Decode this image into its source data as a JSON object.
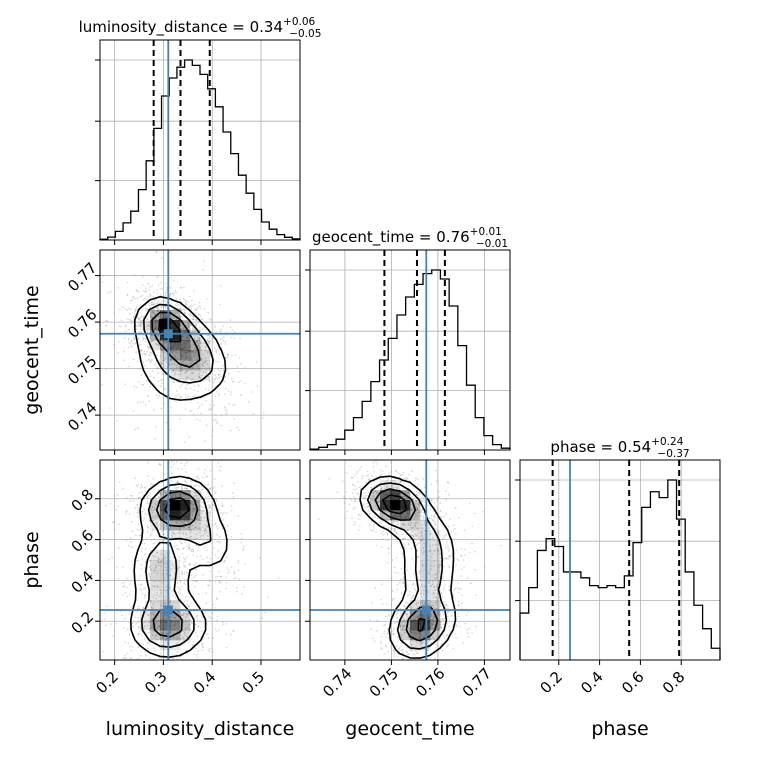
{
  "chart_data": {
    "type": "corner",
    "parameters": [
      {
        "name": "luminosity_distance",
        "label": "luminosity_distance",
        "title_prefix": "luminosity_distance = ",
        "median": "0.34",
        "plus": "+0.06",
        "minus": "−0.05",
        "range": [
          0.17,
          0.58
        ],
        "ticks": [
          0.2,
          0.3,
          0.4,
          0.5
        ],
        "tick_labels": [
          "0.2",
          "0.3",
          "0.4",
          "0.5"
        ],
        "truth": 0.31,
        "quantiles": [
          0.28,
          0.335,
          0.395
        ],
        "hist": [
          0.4,
          1.6,
          4.8,
          9.5,
          16,
          28,
          44,
          62,
          80,
          90,
          96,
          100,
          97,
          92,
          84,
          74,
          60,
          48,
          36,
          26,
          17,
          10,
          6,
          3,
          1.5,
          0.6
        ]
      },
      {
        "name": "geocent_time",
        "label": "geocent_time",
        "title_prefix": "geocent_time = ",
        "median": "0.76",
        "plus": "+0.01",
        "minus": "−0.01",
        "range": [
          0.7325,
          0.7755
        ],
        "ticks": [
          0.74,
          0.75,
          0.76,
          0.77
        ],
        "tick_labels": [
          "0.74",
          "0.75",
          "0.76",
          "0.77"
        ],
        "truth": 0.7575,
        "quantiles": [
          0.7485,
          0.7555,
          0.7615
        ],
        "hist": [
          0.5,
          1.5,
          3,
          6,
          11,
          18,
          27,
          38,
          50,
          62,
          75,
          85,
          92,
          98,
          100,
          95,
          80,
          58,
          36,
          18,
          8,
          3,
          1
        ]
      },
      {
        "name": "phase",
        "label": "phase",
        "title_prefix": "phase = ",
        "median": "0.54",
        "plus": "+0.24",
        "minus": "−0.37",
        "range": [
          0.01,
          0.99
        ],
        "ticks": [
          0.2,
          0.4,
          0.6,
          0.8
        ],
        "tick_labels": [
          "0.2",
          "0.4",
          "0.6",
          "0.8"
        ],
        "truth": 0.255,
        "quantiles": [
          0.17,
          0.545,
          0.79
        ],
        "hist": [
          24,
          37,
          56,
          62,
          58,
          45,
          45,
          42,
          38,
          37,
          38,
          37,
          43,
          60,
          78,
          86,
          83,
          92,
          72,
          45,
          28,
          16,
          6
        ]
      }
    ],
    "pair_modes": [
      {
        "x": 0,
        "y": 1,
        "modes": [
          {
            "x": 0.305,
            "y": 0.7595,
            "sx": 0.028,
            "sy": 0.0028,
            "rho": -0.2,
            "w": 1.0
          },
          {
            "x": 0.355,
            "y": 0.7535,
            "sx": 0.04,
            "sy": 0.0045,
            "rho": -0.4,
            "w": 0.75
          },
          {
            "x": 0.31,
            "y": 0.751,
            "sx": 0.045,
            "sy": 0.006,
            "rho": -0.3,
            "w": 0.35
          }
        ]
      },
      {
        "x": 0,
        "y": 2,
        "modes": [
          {
            "x": 0.325,
            "y": 0.76,
            "sx": 0.035,
            "sy": 0.07,
            "rho": 0.1,
            "w": 1.0
          },
          {
            "x": 0.31,
            "y": 0.18,
            "sx": 0.04,
            "sy": 0.08,
            "rho": 0.0,
            "w": 0.75
          },
          {
            "x": 0.295,
            "y": 0.45,
            "sx": 0.032,
            "sy": 0.12,
            "rho": 0.0,
            "w": 0.5
          },
          {
            "x": 0.38,
            "y": 0.62,
            "sx": 0.035,
            "sy": 0.1,
            "rho": -0.3,
            "w": 0.35
          }
        ]
      },
      {
        "x": 1,
        "y": 2,
        "modes": [
          {
            "x": 0.7505,
            "y": 0.78,
            "sx": 0.0035,
            "sy": 0.06,
            "rho": -0.2,
            "w": 1.0
          },
          {
            "x": 0.7565,
            "y": 0.18,
            "sx": 0.0035,
            "sy": 0.08,
            "rho": 0.2,
            "w": 0.85
          },
          {
            "x": 0.758,
            "y": 0.45,
            "sx": 0.003,
            "sy": 0.11,
            "rho": 0.0,
            "w": 0.45
          },
          {
            "x": 0.756,
            "y": 0.65,
            "sx": 0.004,
            "sy": 0.08,
            "rho": -0.4,
            "w": 0.3
          }
        ]
      }
    ],
    "colors": {
      "truth": "#4682b4",
      "hist_line": "#000000",
      "contour": "#000000",
      "density": "#000000",
      "grid": "#b0b0b0",
      "scatter": "#888888"
    },
    "grid": true
  }
}
